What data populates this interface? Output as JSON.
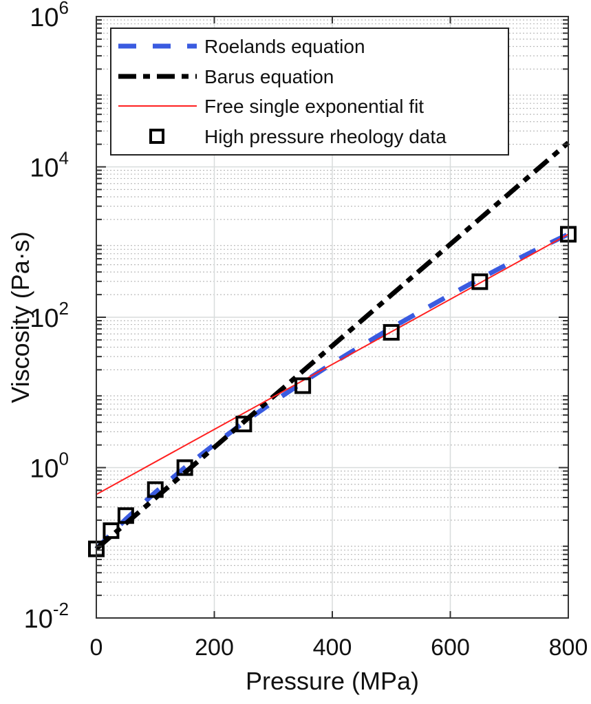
{
  "chart_data": {
    "type": "line",
    "title": "",
    "xlabel": "Pressure (MPa)",
    "ylabel": "Viscosity (Pa·s)",
    "xlim": [
      0,
      800
    ],
    "ylim": [
      0.01,
      1000000
    ],
    "yscale": "log",
    "xticks": [
      0,
      200,
      400,
      600,
      800
    ],
    "xtick_labels": [
      "0",
      "200",
      "400",
      "600",
      "800"
    ],
    "yticks": [
      0.01,
      1,
      100,
      10000,
      1000000
    ],
    "ytick_labels": [
      {
        "base": "10",
        "exp": "-2"
      },
      {
        "base": "10",
        "exp": "0"
      },
      {
        "base": "10",
        "exp": "2"
      },
      {
        "base": "10",
        "exp": "4"
      },
      {
        "base": "10",
        "exp": "6"
      }
    ],
    "grid": true,
    "legend_position": "top-left",
    "series": [
      {
        "name": "Roelands equation",
        "style": "dashed",
        "color": "#3a5be0",
        "x": [
          0,
          50,
          100,
          150,
          200,
          250,
          300,
          350,
          400,
          450,
          500,
          550,
          600,
          650,
          700,
          750,
          800
        ],
        "y": [
          0.083,
          0.206,
          0.469,
          1.0,
          2.03,
          3.98,
          7.5,
          13.6,
          24.3,
          42,
          72,
          120,
          199,
          324,
          523,
          822,
          1270
        ]
      },
      {
        "name": "Barus equation",
        "style": "dash-dot",
        "color": "#000000",
        "x": [
          0,
          800
        ],
        "y": [
          0.083,
          21000
        ]
      },
      {
        "name": "Free single exponential fit",
        "style": "solid",
        "color": "#ff2020",
        "x": [
          0,
          800
        ],
        "y": [
          0.44,
          1270
        ]
      },
      {
        "name": "High pressure rheology data",
        "style": "markers-square",
        "color": "#000000",
        "x": [
          0,
          25,
          50,
          100,
          150,
          250,
          350,
          500,
          650,
          800
        ],
        "y": [
          0.083,
          0.145,
          0.23,
          0.51,
          1.0,
          3.8,
          12.3,
          63,
          297,
          1270
        ]
      }
    ]
  }
}
